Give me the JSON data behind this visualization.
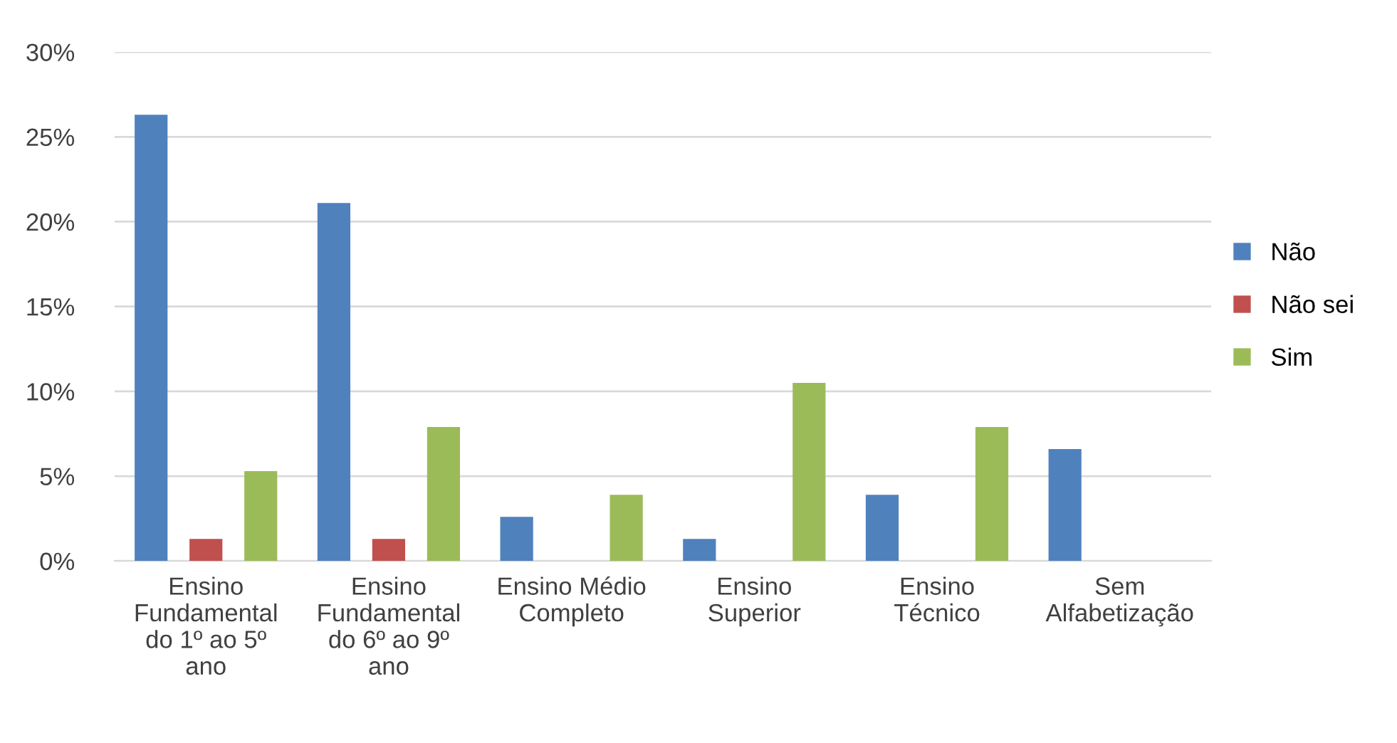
{
  "chart_data": {
    "type": "bar",
    "categories": [
      "Ensino Fundamental do 1º ao 5º ano",
      "Ensino Fundamental do 6º ao 9º ano",
      "Ensino Médio Completo",
      "Ensino Superior",
      "Ensino Técnico",
      "Sem Alfabetização"
    ],
    "series": [
      {
        "name": "Não",
        "color": "#4f81bd",
        "values": [
          26.3,
          21.1,
          2.6,
          1.3,
          3.9,
          6.6
        ]
      },
      {
        "name": "Não sei",
        "color": "#c0504d",
        "values": [
          1.3,
          1.3,
          0,
          0,
          0,
          0
        ]
      },
      {
        "name": "Sim",
        "color": "#9bbb59",
        "values": [
          5.3,
          7.9,
          3.9,
          10.5,
          7.9,
          0
        ]
      }
    ],
    "ylim": [
      0,
      30
    ],
    "yticks": [
      {
        "value": 0,
        "label": "0%"
      },
      {
        "value": 5,
        "label": "5%"
      },
      {
        "value": 10,
        "label": "10%"
      },
      {
        "value": 15,
        "label": "15%"
      },
      {
        "value": 20,
        "label": "20%"
      },
      {
        "value": 25,
        "label": "25%"
      },
      {
        "value": 30,
        "label": "30%"
      }
    ],
    "grid": "y",
    "legend": "right"
  }
}
